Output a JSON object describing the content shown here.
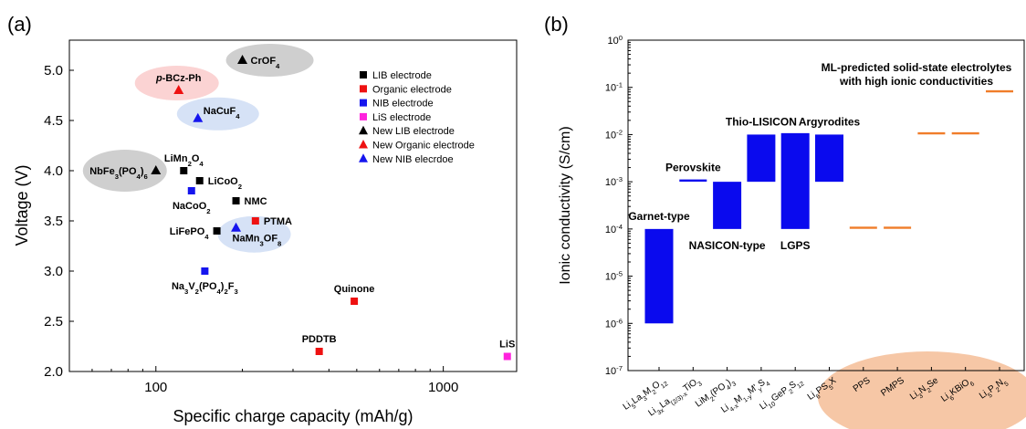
{
  "colors": {
    "lib": "#000000",
    "organic": "#ee1111",
    "nib": "#1515ee",
    "lis": "#ff22dd",
    "bar_blue": "#0a0aee",
    "ml_orange": "#f07d2a",
    "halo_gray": "#cfcfcf",
    "halo_pink": "#fbd3d3",
    "halo_blue": "#d6e2f6",
    "halo_peach": "#f6c7a6"
  },
  "chart_data": [
    {
      "type": "scatter",
      "panel_label": "(a)",
      "xlabel": "Specific charge capacity (mAh/g)",
      "ylabel": "Voltage (V)",
      "xscale": "log",
      "xlim": [
        50,
        1800
      ],
      "ylim": [
        2.0,
        5.3
      ],
      "x_ticks": [
        {
          "value": 100,
          "label": "100"
        },
        {
          "value": 1000,
          "label": "1000"
        }
      ],
      "y_ticks": [
        "2.0",
        "2.5",
        "3.0",
        "3.5",
        "4.0",
        "4.5",
        "5.0"
      ],
      "legend_position": "top-right",
      "legend": [
        {
          "label": "LIB electrode",
          "marker": "square",
          "color": "lib"
        },
        {
          "label": "Organic electrode",
          "marker": "square",
          "color": "organic"
        },
        {
          "label": "NIB electrode",
          "marker": "square",
          "color": "nib"
        },
        {
          "label": "LiS electrode",
          "marker": "square",
          "color": "lis"
        },
        {
          "label": "New LIB electrode",
          "marker": "triangle",
          "color": "lib"
        },
        {
          "label": "New Organic electrode",
          "marker": "triangle",
          "color": "organic"
        },
        {
          "label": "New NIB elecrdoe",
          "marker": "triangle",
          "color": "nib"
        }
      ],
      "points": [
        {
          "label": [
            {
              "t": "LiMn"
            },
            {
              "t": "2",
              "sub": true
            },
            {
              "t": "O"
            },
            {
              "t": "4",
              "sub": true
            }
          ],
          "x": 125,
          "y": 4.0,
          "marker": "square",
          "color": "lib",
          "halo": null,
          "label_pos": "above"
        },
        {
          "label": [
            {
              "t": "LiCoO"
            },
            {
              "t": "2",
              "sub": true
            }
          ],
          "x": 142,
          "y": 3.9,
          "marker": "square",
          "color": "lib",
          "halo": null,
          "label_pos": "right"
        },
        {
          "label": [
            {
              "t": "NMC"
            }
          ],
          "x": 190,
          "y": 3.7,
          "marker": "square",
          "color": "lib",
          "halo": null,
          "label_pos": "right"
        },
        {
          "label": [
            {
              "t": "LiFePO"
            },
            {
              "t": "4",
              "sub": true
            }
          ],
          "x": 163,
          "y": 3.4,
          "marker": "square",
          "color": "lib",
          "halo": null,
          "label_pos": "left"
        },
        {
          "label": [
            {
              "t": "PTMA"
            }
          ],
          "x": 222,
          "y": 3.5,
          "marker": "square",
          "color": "organic",
          "halo": null,
          "label_pos": "right"
        },
        {
          "label": [
            {
              "t": "Quinone"
            }
          ],
          "x": 490,
          "y": 2.7,
          "marker": "square",
          "color": "organic",
          "halo": null,
          "label_pos": "above"
        },
        {
          "label": [
            {
              "t": "PDDTB"
            }
          ],
          "x": 370,
          "y": 2.2,
          "marker": "square",
          "color": "organic",
          "halo": null,
          "label_pos": "above"
        },
        {
          "label": [
            {
              "t": "NaCoO"
            },
            {
              "t": "2",
              "sub": true
            }
          ],
          "x": 133,
          "y": 3.8,
          "marker": "square",
          "color": "nib",
          "halo": null,
          "label_pos": "below"
        },
        {
          "label": [
            {
              "t": "Na"
            },
            {
              "t": "3",
              "sub": true
            },
            {
              "t": "V"
            },
            {
              "t": "2",
              "sub": true
            },
            {
              "t": "(PO"
            },
            {
              "t": "4",
              "sub": true
            },
            {
              "t": ")"
            },
            {
              "t": "2",
              "sub": true
            },
            {
              "t": "F"
            },
            {
              "t": "3",
              "sub": true
            }
          ],
          "x": 148,
          "y": 3.0,
          "marker": "square",
          "color": "nib",
          "halo": null,
          "label_pos": "below"
        },
        {
          "label": [
            {
              "t": "LiS"
            }
          ],
          "x": 1670,
          "y": 2.15,
          "marker": "square",
          "color": "lis",
          "halo": null,
          "label_pos": "above"
        },
        {
          "label": [
            {
              "t": "CrOF"
            },
            {
              "t": "4",
              "sub": true
            }
          ],
          "x": 200,
          "y": 5.1,
          "marker": "triangle",
          "color": "lib",
          "halo": "halo_gray",
          "label_pos": "right"
        },
        {
          "label": [
            {
              "t": "NbFe"
            },
            {
              "t": "3",
              "sub": true
            },
            {
              "t": "(PO"
            },
            {
              "t": "4",
              "sub": true
            },
            {
              "t": ")"
            },
            {
              "t": "6",
              "sub": true
            }
          ],
          "x": 100,
          "y": 4.0,
          "marker": "triangle",
          "color": "lib",
          "halo": "halo_gray",
          "label_pos": "left"
        },
        {
          "label": [
            {
              "t": "p",
              "italic": true
            },
            {
              "t": "-BCz-Ph"
            }
          ],
          "x": 120,
          "y": 4.8,
          "marker": "triangle",
          "color": "organic",
          "halo": "halo_pink",
          "label_pos": "above"
        },
        {
          "label": [
            {
              "t": "NaCuF"
            },
            {
              "t": "4",
              "sub": true
            }
          ],
          "x": 140,
          "y": 4.52,
          "marker": "triangle",
          "color": "nib",
          "halo": "halo_blue",
          "label_pos": "above-right"
        },
        {
          "label": [
            {
              "t": "NaMn"
            },
            {
              "t": "3",
              "sub": true
            },
            {
              "t": "OF"
            },
            {
              "t": "8",
              "sub": true
            }
          ],
          "x": 190,
          "y": 3.43,
          "marker": "triangle",
          "color": "nib",
          "halo": "halo_blue",
          "label_pos": "below-right"
        }
      ]
    },
    {
      "type": "bar",
      "panel_label": "(b)",
      "ylabel": "Ionic conductivity (S/cm)",
      "yscale": "log",
      "ylim_exp": [
        -7,
        0
      ],
      "y_ticks": [
        {
          "base": "10",
          "exp": "0"
        },
        {
          "base": "10",
          "exp": "-1"
        },
        {
          "base": "10",
          "exp": "-2"
        },
        {
          "base": "10",
          "exp": "-3"
        },
        {
          "base": "10",
          "exp": "-4"
        },
        {
          "base": "10",
          "exp": "-5"
        },
        {
          "base": "10",
          "exp": "-6"
        },
        {
          "base": "10",
          "exp": "-7"
        }
      ],
      "annotation": [
        "ML-predicted solid-state electrolytes",
        "with high ionic conductivities"
      ],
      "categories": [
        {
          "label": [
            {
              "t": "Li"
            },
            {
              "t": "5",
              "sub": true
            },
            {
              "t": "La"
            },
            {
              "t": "3",
              "sub": true
            },
            {
              "t": "M"
            },
            {
              "t": "2",
              "sub": true
            },
            {
              "t": "O"
            },
            {
              "t": "12",
              "sub": true
            }
          ],
          "log_min": -6,
          "log_max": -4,
          "kind": "range",
          "group": "Garnet-type",
          "group_pos": "above"
        },
        {
          "label": [
            {
              "t": "Li"
            },
            {
              "t": "3x",
              "sub": true
            },
            {
              "t": "La"
            },
            {
              "t": "(2/3)-x",
              "sub": true
            },
            {
              "t": "TiO"
            },
            {
              "t": "3",
              "sub": true
            }
          ],
          "log_min": -2.97,
          "log_max": -2.97,
          "kind": "range",
          "group": "Perovskite",
          "group_pos": "above"
        },
        {
          "label": [
            {
              "t": "LiM"
            },
            {
              "t": "2",
              "sub": true
            },
            {
              "t": "(PO"
            },
            {
              "t": "4",
              "sub": true
            },
            {
              "t": ")"
            },
            {
              "t": "3",
              "sub": true
            }
          ],
          "log_min": -4,
          "log_max": -3,
          "kind": "range",
          "group": "NASICON-type",
          "group_pos": "below"
        },
        {
          "label": [
            {
              "t": "Li"
            },
            {
              "t": "4-x",
              "sub": true
            },
            {
              "t": "M"
            },
            {
              "t": "1-y",
              "sub": true
            },
            {
              "t": "M'"
            },
            {
              "t": "y",
              "sub": true
            },
            {
              "t": "S"
            },
            {
              "t": "4",
              "sub": true
            }
          ],
          "log_min": -3,
          "log_max": -2,
          "kind": "range",
          "group": "Thio-LISICON",
          "group_pos": "above"
        },
        {
          "label": [
            {
              "t": "Li"
            },
            {
              "t": "10",
              "sub": true
            },
            {
              "t": "GeP"
            },
            {
              "t": "2",
              "sub": true
            },
            {
              "t": "S"
            },
            {
              "t": "12",
              "sub": true
            }
          ],
          "log_min": -4,
          "log_max": -1.97,
          "kind": "range",
          "group": "LGPS",
          "group_pos": "below"
        },
        {
          "label": [
            {
              "t": "Li"
            },
            {
              "t": "6",
              "sub": true
            },
            {
              "t": "PS"
            },
            {
              "t": "5",
              "sub": true
            },
            {
              "t": "X"
            }
          ],
          "log_min": -3,
          "log_max": -2,
          "kind": "range",
          "group": "Argyrodites",
          "group_pos": "above"
        },
        {
          "label": [
            {
              "t": "PPS"
            }
          ],
          "log_min": -3.97,
          "log_max": -3.97,
          "kind": "ml",
          "group": null
        },
        {
          "label": [
            {
              "t": "PMPS"
            }
          ],
          "log_min": -3.97,
          "log_max": -3.97,
          "kind": "ml",
          "group": null
        },
        {
          "label": [
            {
              "t": "Li"
            },
            {
              "t": "3",
              "sub": true
            },
            {
              "t": "N"
            },
            {
              "t": "2",
              "sub": true
            },
            {
              "t": "Se"
            }
          ],
          "log_min": -1.97,
          "log_max": -1.97,
          "kind": "ml",
          "group": null
        },
        {
          "label": [
            {
              "t": "Li"
            },
            {
              "t": "6",
              "sub": true
            },
            {
              "t": "KBiO"
            },
            {
              "t": "6",
              "sub": true
            }
          ],
          "log_min": -1.97,
          "log_max": -1.97,
          "kind": "ml",
          "group": null
        },
        {
          "label": [
            {
              "t": "Li"
            },
            {
              "t": "5",
              "sub": true
            },
            {
              "t": "P"
            },
            {
              "t": "2",
              "sub": true
            },
            {
              "t": "N"
            },
            {
              "t": "5",
              "sub": true
            }
          ],
          "log_min": -1.08,
          "log_max": -1.08,
          "kind": "ml",
          "group": null
        }
      ]
    }
  ]
}
